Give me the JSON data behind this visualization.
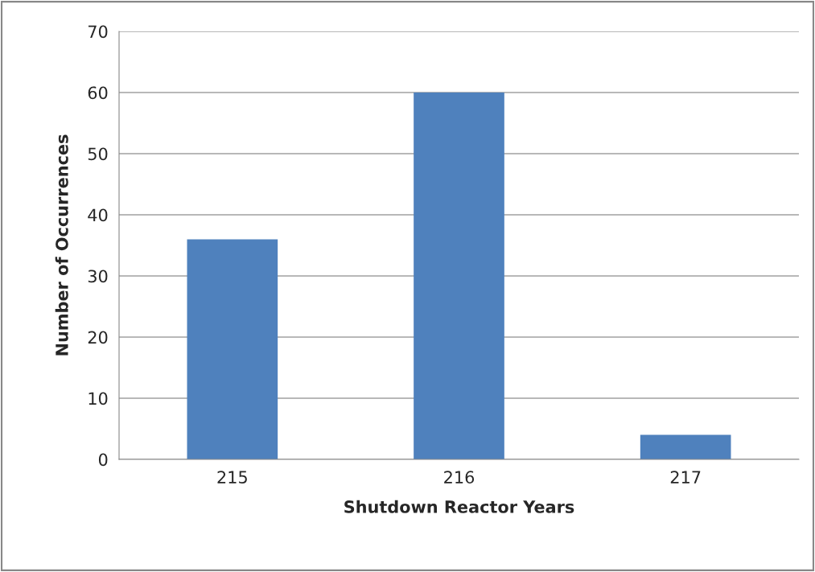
{
  "chart_data": {
    "type": "bar",
    "xlabel": "Shutdown Reactor Years",
    "ylabel": "Number of Occurrences",
    "categories": [
      "215",
      "216",
      "217"
    ],
    "values": [
      36,
      60,
      4
    ],
    "color": "#4f81bd",
    "ylim": [
      0,
      70
    ],
    "yticks": [
      0,
      10,
      20,
      30,
      40,
      50,
      60,
      70
    ],
    "grid": "y"
  }
}
